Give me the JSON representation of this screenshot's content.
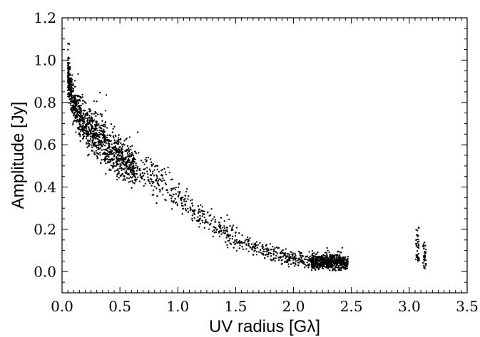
{
  "chart_data": {
    "type": "scatter",
    "xlabel": "UV radius [Gλ]",
    "ylabel": "Amplitude [Jy]",
    "xlim": [
      0.0,
      3.5
    ],
    "ylim": [
      -0.1,
      1.2
    ],
    "xticks": [
      0.0,
      0.5,
      1.0,
      1.5,
      2.0,
      2.5,
      3.0,
      3.5
    ],
    "yticks": [
      0.0,
      0.2,
      0.4,
      0.6,
      0.8,
      1.0,
      1.2
    ],
    "xtick_labels": [
      "0.0",
      "0.5",
      "1.0",
      "1.5",
      "2.0",
      "2.5",
      "3.0",
      "3.5"
    ],
    "ytick_labels": [
      "0.0",
      "0.2",
      "0.4",
      "0.6",
      "0.8",
      "1.0",
      "1.2"
    ],
    "grid": false,
    "marker_color": "#000000",
    "series": [
      {
        "trend": [
          {
            "x": 0.05,
            "y": 0.93,
            "spread": 0.08
          },
          {
            "x": 0.1,
            "y": 0.78,
            "spread": 0.08
          },
          {
            "x": 0.2,
            "y": 0.7,
            "spread": 0.09
          },
          {
            "x": 0.3,
            "y": 0.64,
            "spread": 0.1
          },
          {
            "x": 0.4,
            "y": 0.59,
            "spread": 0.1
          },
          {
            "x": 0.5,
            "y": 0.54,
            "spread": 0.09
          },
          {
            "x": 0.6,
            "y": 0.5,
            "spread": 0.08
          },
          {
            "x": 0.7,
            "y": 0.47,
            "spread": 0.07
          },
          {
            "x": 0.8,
            "y": 0.44,
            "spread": 0.07
          },
          {
            "x": 0.9,
            "y": 0.4,
            "spread": 0.06
          },
          {
            "x": 1.0,
            "y": 0.36,
            "spread": 0.06
          },
          {
            "x": 1.1,
            "y": 0.31,
            "spread": 0.06
          },
          {
            "x": 1.2,
            "y": 0.27,
            "spread": 0.05
          },
          {
            "x": 1.3,
            "y": 0.23,
            "spread": 0.05
          },
          {
            "x": 1.4,
            "y": 0.19,
            "spread": 0.05
          },
          {
            "x": 1.5,
            "y": 0.16,
            "spread": 0.05
          },
          {
            "x": 1.6,
            "y": 0.13,
            "spread": 0.04
          },
          {
            "x": 1.7,
            "y": 0.11,
            "spread": 0.04
          },
          {
            "x": 1.8,
            "y": 0.09,
            "spread": 0.035
          },
          {
            "x": 1.9,
            "y": 0.075,
            "spread": 0.03
          },
          {
            "x": 2.0,
            "y": 0.06,
            "spread": 0.03
          },
          {
            "x": 2.1,
            "y": 0.05,
            "spread": 0.03
          },
          {
            "x": 2.2,
            "y": 0.045,
            "spread": 0.03
          },
          {
            "x": 2.3,
            "y": 0.045,
            "spread": 0.03
          },
          {
            "x": 2.4,
            "y": 0.045,
            "spread": 0.03
          },
          {
            "x": 2.47,
            "y": 0.045,
            "spread": 0.03
          }
        ],
        "clusters": [
          {
            "x": 3.07,
            "y_min": 0.05,
            "y_max": 0.21
          },
          {
            "x": 3.13,
            "y_min": 0.01,
            "y_max": 0.14
          }
        ]
      }
    ]
  }
}
